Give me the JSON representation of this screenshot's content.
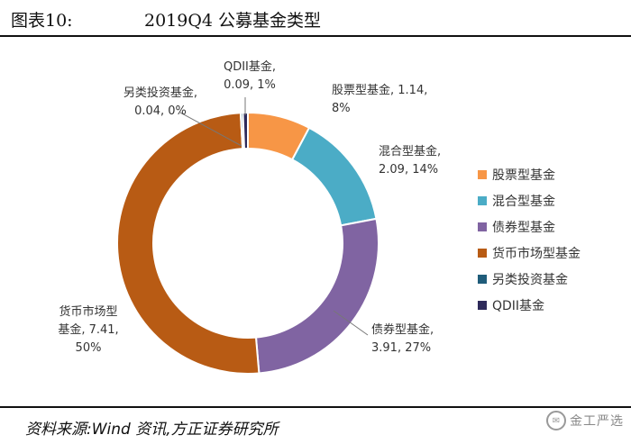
{
  "header": {
    "figure_number": "图表10:",
    "title": "2019Q4 公募基金类型"
  },
  "source": "资料来源:Wind 资讯,方正证券研究所",
  "watermark": {
    "icon": "wechat-icon",
    "text": "金工严选"
  },
  "chart_data": {
    "type": "pie",
    "donut": true,
    "categories": [
      "股票型基金",
      "混合型基金",
      "债券型基金",
      "货币市场型基金",
      "另类投资基金",
      "QDII基金"
    ],
    "values": [
      1.14,
      2.09,
      3.91,
      7.41,
      0.04,
      0.09
    ],
    "percent_labels": [
      "8%",
      "14%",
      "27%",
      "50%",
      "0%",
      "1%"
    ],
    "data_labels": [
      [
        "股票型基金, 1.14,",
        "8%"
      ],
      [
        "混合型基金,",
        "2.09, 14%"
      ],
      [
        "债券型基金,",
        "3.91, 27%"
      ],
      [
        "货币市场型",
        "基金, 7.41,",
        "50%"
      ],
      [
        "另类投资基金,",
        "0.04, 0%"
      ],
      [
        "QDII基金,",
        "0.09, 1%"
      ]
    ],
    "colors": [
      "#F79646",
      "#4BACC6",
      "#8064A2",
      "#B85B14",
      "#1F5C7A",
      "#2E2A5A"
    ],
    "legend_position": "right"
  }
}
